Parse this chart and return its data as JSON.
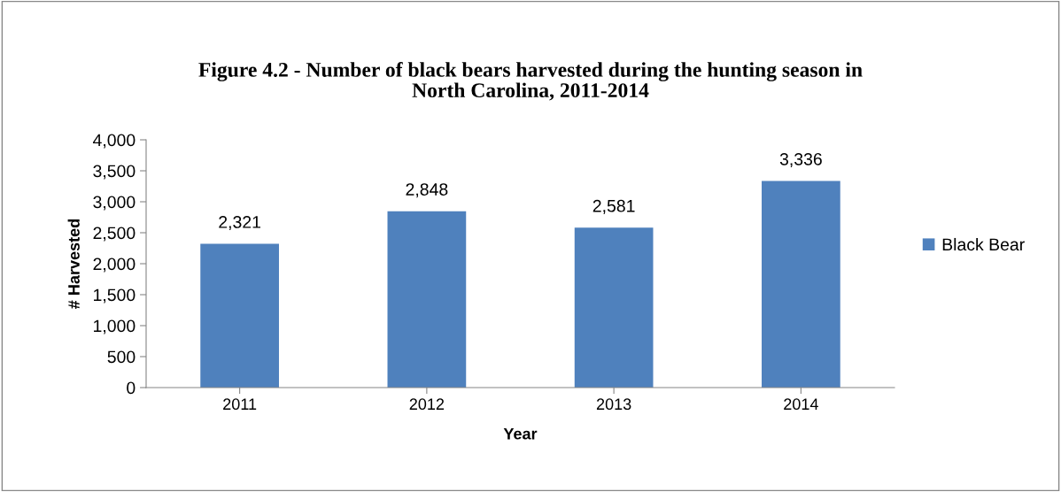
{
  "chart_data": {
    "type": "bar",
    "title": "Figure 4.2 - Number of black bears harvested during the hunting season in\nNorth Carolina, 2011-2014",
    "xlabel": "Year",
    "ylabel": "# Harvested",
    "categories": [
      "2011",
      "2012",
      "2013",
      "2014"
    ],
    "series": [
      {
        "name": "Black Bear",
        "color": "#4f81bd",
        "values": [
          2321,
          2848,
          2581,
          3336
        ],
        "value_labels": [
          "2,321",
          "2,848",
          "2,581",
          "3,336"
        ]
      }
    ],
    "ylim": [
      0,
      4000
    ],
    "yticks": [
      0,
      {
        "value": 500,
        "label": "500"
      },
      {
        "value": 1000,
        "label": "1,000"
      },
      {
        "value": 1500,
        "label": "1,500"
      },
      {
        "value": 2000,
        "label": "2,000"
      },
      {
        "value": 2500,
        "label": "2,500"
      },
      {
        "value": 3000,
        "label": "3,000"
      },
      {
        "value": 3500,
        "label": "3,500"
      },
      {
        "value": 4000,
        "label": "4,000"
      }
    ],
    "grid": false,
    "legend": "right"
  }
}
